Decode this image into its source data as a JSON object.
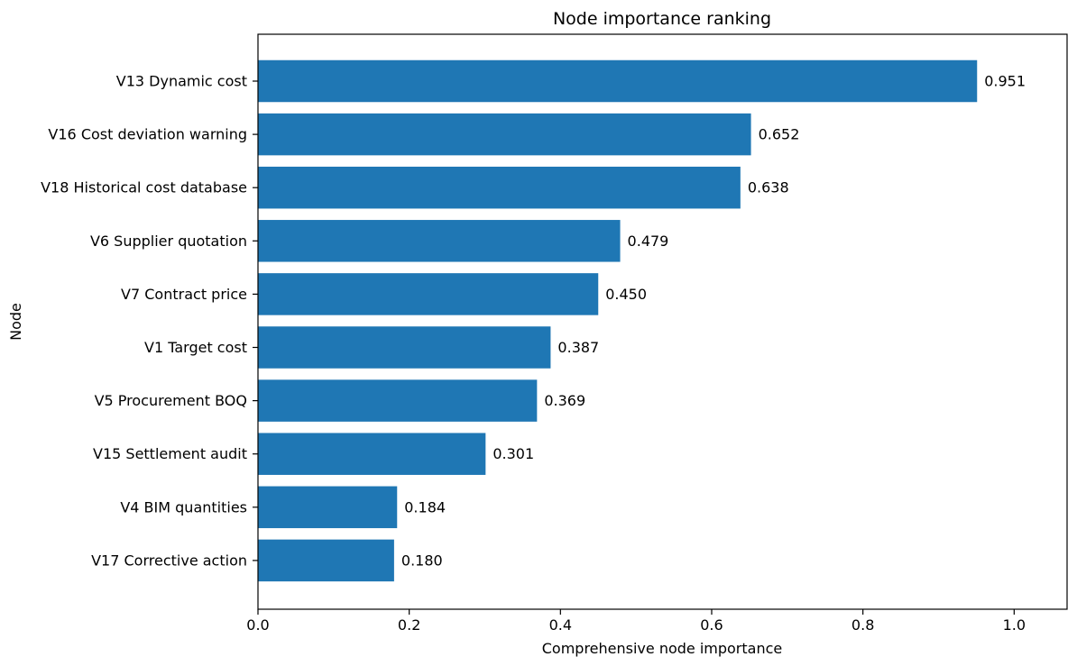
{
  "chart_data": {
    "type": "bar",
    "orientation": "horizontal",
    "title": "Node importance ranking",
    "xlabel": "Comprehensive node importance",
    "ylabel": "Node",
    "xlim": [
      0,
      1.07
    ],
    "x_ticks": [
      0.0,
      0.2,
      0.4,
      0.6,
      0.8,
      1.0
    ],
    "x_tick_labels": [
      "0.0",
      "0.2",
      "0.4",
      "0.6",
      "0.8",
      "1.0"
    ],
    "grid": false,
    "bar_color": "#1f77b4",
    "categories": [
      "V13 Dynamic cost",
      "V16 Cost deviation warning",
      "V18 Historical cost database",
      "V6 Supplier quotation",
      "V7 Contract price",
      "V1 Target cost",
      "V5 Procurement BOQ",
      "V15 Settlement audit",
      "V4 BIM quantities",
      "V17 Corrective action"
    ],
    "values": [
      0.951,
      0.652,
      0.638,
      0.479,
      0.45,
      0.387,
      0.369,
      0.301,
      0.184,
      0.18
    ],
    "data_labels": [
      "0.951",
      "0.652",
      "0.638",
      "0.479",
      "0.450",
      "0.387",
      "0.369",
      "0.301",
      "0.184",
      "0.180"
    ]
  }
}
